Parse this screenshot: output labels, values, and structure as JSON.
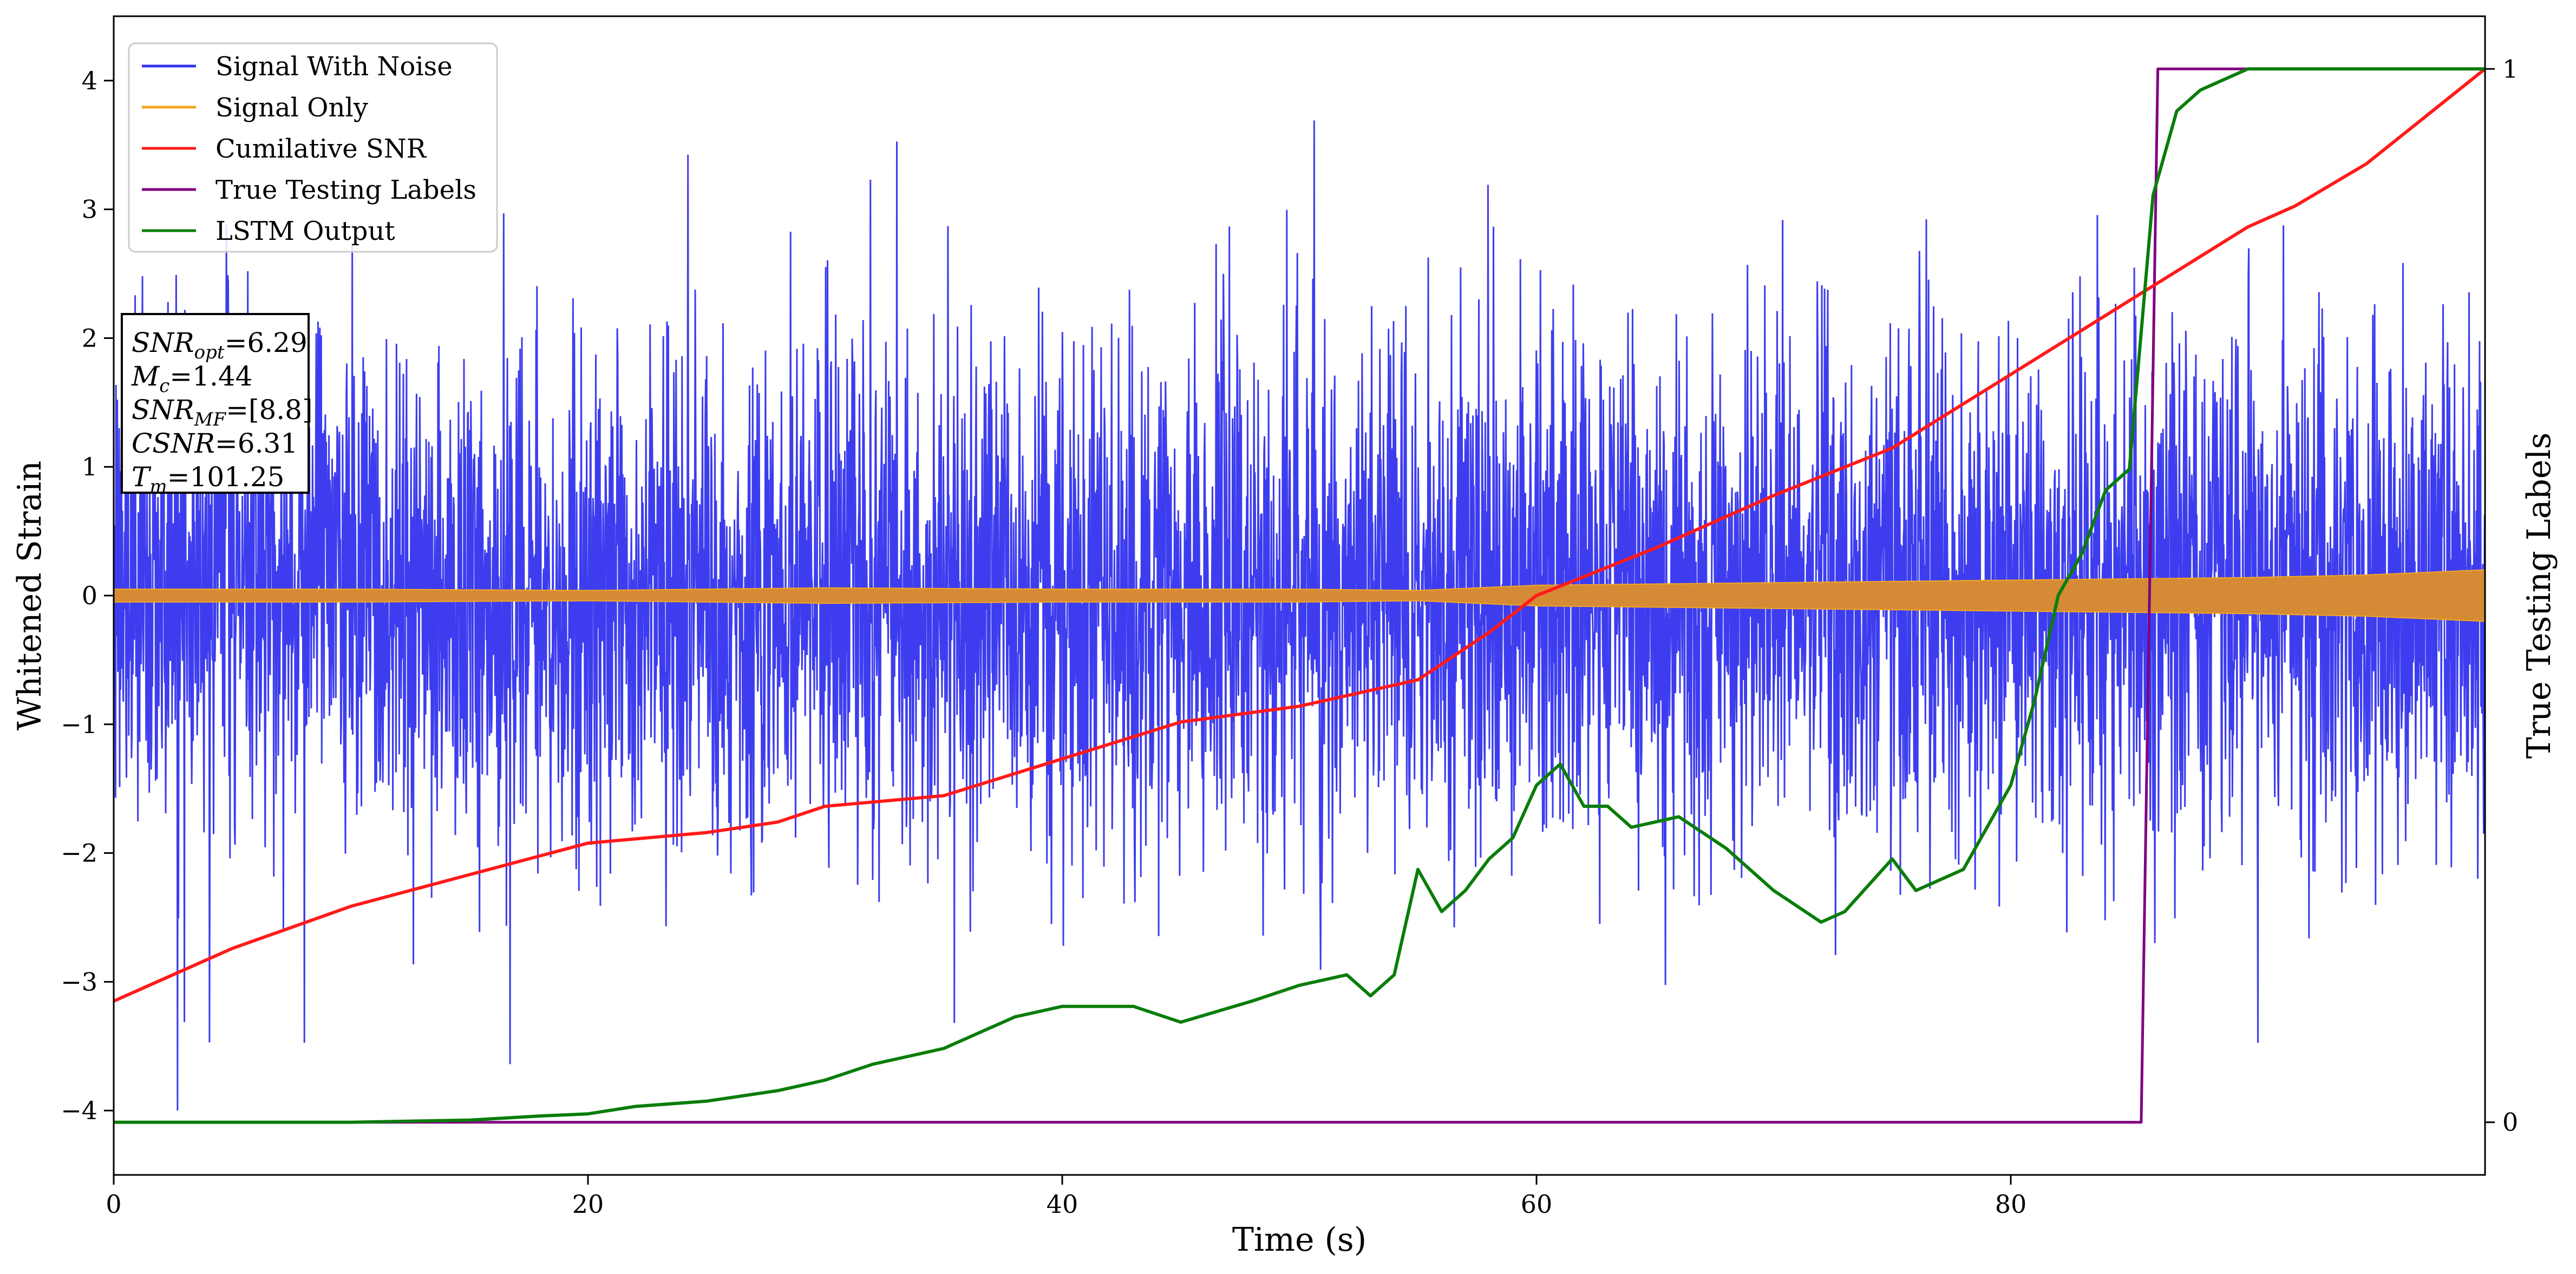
{
  "chart_data": {
    "type": "line",
    "title": "",
    "xlabel": "Time (s)",
    "ylabel_left": "Whitened Strain",
    "ylabel_right": "True Testing Labels",
    "xlim": [
      0,
      100
    ],
    "ylim_left": [
      -4.5,
      4.5
    ],
    "ylim_right": [
      -0.05,
      1.05
    ],
    "x_ticks": [
      0,
      20,
      40,
      60,
      80
    ],
    "x_tick_labels": [
      "0",
      "20",
      "40",
      "60",
      "80"
    ],
    "y_ticks_left": [
      -4,
      -3,
      -2,
      -1,
      0,
      1,
      2,
      3,
      4
    ],
    "y_tick_labels_left": [
      "−4",
      "−3",
      "−2",
      "−1",
      "0",
      "1",
      "2",
      "3",
      "4"
    ],
    "y_ticks_right": [
      0,
      1
    ],
    "y_tick_labels_right": [
      "0",
      "1"
    ],
    "grid": false,
    "legend_position": "top-left",
    "colors": {
      "signal_with_noise": "#3333ee",
      "signal_only": "#f5a623",
      "signal_only_fill": "#d58a35",
      "cumulative_snr": "#ff1a1a",
      "true_labels": "#800080",
      "lstm": "#0a7d0a"
    },
    "series": [
      {
        "name": "Signal With Noise",
        "axis": "left",
        "style": "dense noise, approx. Gaussian",
        "color": "#3333ee",
        "mean": 0,
        "std": 1.15,
        "extent": [
          -4.0,
          4.1
        ]
      },
      {
        "name": "Signal Only",
        "axis": "left",
        "style": "oscillating band (envelope shown)",
        "color": "#f5a623",
        "x": [
          0,
          10,
          20,
          30,
          40,
          50,
          55,
          60,
          70,
          80,
          90,
          95,
          100
        ],
        "envelope": [
          0.05,
          0.05,
          0.04,
          0.06,
          0.05,
          0.05,
          0.04,
          0.08,
          0.1,
          0.12,
          0.14,
          0.16,
          0.2
        ]
      },
      {
        "name": "Cumilative SNR",
        "axis": "right",
        "color": "#ff1a1a",
        "x": [
          0,
          5,
          10,
          15,
          20,
          25,
          28,
          30,
          35,
          40,
          45,
          50,
          55,
          58,
          60,
          65,
          70,
          75,
          80,
          85,
          90,
          92,
          95,
          100
        ],
        "y": [
          0.115,
          0.165,
          0.205,
          0.235,
          0.265,
          0.275,
          0.285,
          0.3,
          0.31,
          0.345,
          0.38,
          0.395,
          0.42,
          0.465,
          0.5,
          0.545,
          0.595,
          0.64,
          0.71,
          0.78,
          0.85,
          0.87,
          0.91,
          1.0
        ]
      },
      {
        "name": "True Testing Labels",
        "axis": "right",
        "color": "#800080",
        "x": [
          0,
          85.5,
          86.2,
          92
        ],
        "y": [
          0,
          0,
          1,
          1
        ]
      },
      {
        "name": "LSTM Output",
        "axis": "right",
        "color": "#0a7d0a",
        "x": [
          0,
          10,
          15,
          18,
          20,
          22,
          25,
          28,
          30,
          32,
          35,
          38,
          40,
          43,
          45,
          48,
          50,
          52,
          53,
          54,
          55,
          56,
          57,
          58,
          59,
          60,
          61,
          62,
          63,
          64,
          66,
          68,
          70,
          72,
          73,
          75,
          76,
          77,
          78,
          79,
          80,
          81,
          82,
          83,
          84,
          85,
          86,
          87,
          88,
          89,
          90,
          92,
          95,
          100
        ],
        "y": [
          0,
          0,
          0.002,
          0.006,
          0.008,
          0.015,
          0.02,
          0.03,
          0.04,
          0.055,
          0.07,
          0.1,
          0.11,
          0.11,
          0.095,
          0.115,
          0.13,
          0.14,
          0.12,
          0.14,
          0.24,
          0.2,
          0.22,
          0.25,
          0.27,
          0.32,
          0.34,
          0.3,
          0.3,
          0.28,
          0.29,
          0.26,
          0.22,
          0.19,
          0.2,
          0.25,
          0.22,
          0.23,
          0.24,
          0.28,
          0.32,
          0.4,
          0.5,
          0.54,
          0.6,
          0.62,
          0.88,
          0.96,
          0.98,
          0.99,
          1.0,
          1.0,
          1.0,
          1.0
        ]
      }
    ],
    "info_box": [
      {
        "base": "SNR",
        "sub": "opt",
        "value": "=6.29"
      },
      {
        "base": "M",
        "sub": "c",
        "value": "=1.44"
      },
      {
        "base": "SNR",
        "sub": "MF",
        "value": "=[8.8]"
      },
      {
        "base": "CSNR",
        "sub": "",
        "value": "=6.31"
      },
      {
        "base": "T",
        "sub": "m",
        "value": "=101.25"
      }
    ]
  }
}
